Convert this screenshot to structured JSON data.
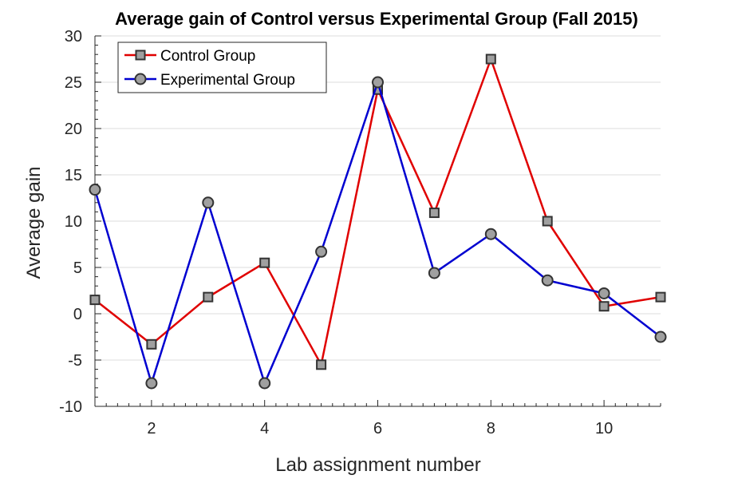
{
  "chart_data": {
    "type": "line",
    "title": "Average gain of Control versus Experimental Group (Fall 2015)",
    "xlabel": "Lab assignment number",
    "ylabel": "Average gain",
    "xlim": [
      1,
      11
    ],
    "ylim": [
      -10,
      30
    ],
    "xticks": [
      2,
      4,
      6,
      8,
      10
    ],
    "yticks": [
      -10,
      -5,
      0,
      5,
      10,
      15,
      20,
      25,
      30
    ],
    "grid": "horizontal",
    "legend_position": "top-left",
    "x": [
      1,
      2,
      3,
      4,
      5,
      6,
      7,
      8,
      9,
      10,
      11
    ],
    "series": [
      {
        "name": "Control Group",
        "color": "#e00000",
        "marker": "square",
        "values": [
          1.5,
          -3.3,
          1.8,
          5.5,
          -5.5,
          24.2,
          10.9,
          27.5,
          10.0,
          0.8,
          1.8
        ]
      },
      {
        "name": "Experimental Group",
        "color": "#0000d0",
        "marker": "circle",
        "values": [
          13.4,
          -7.5,
          12.0,
          -7.5,
          6.7,
          25.0,
          4.4,
          8.6,
          3.6,
          2.2,
          -2.5
        ]
      }
    ],
    "marker_fill": "#a0a0a0",
    "marker_edge": "#333333"
  }
}
